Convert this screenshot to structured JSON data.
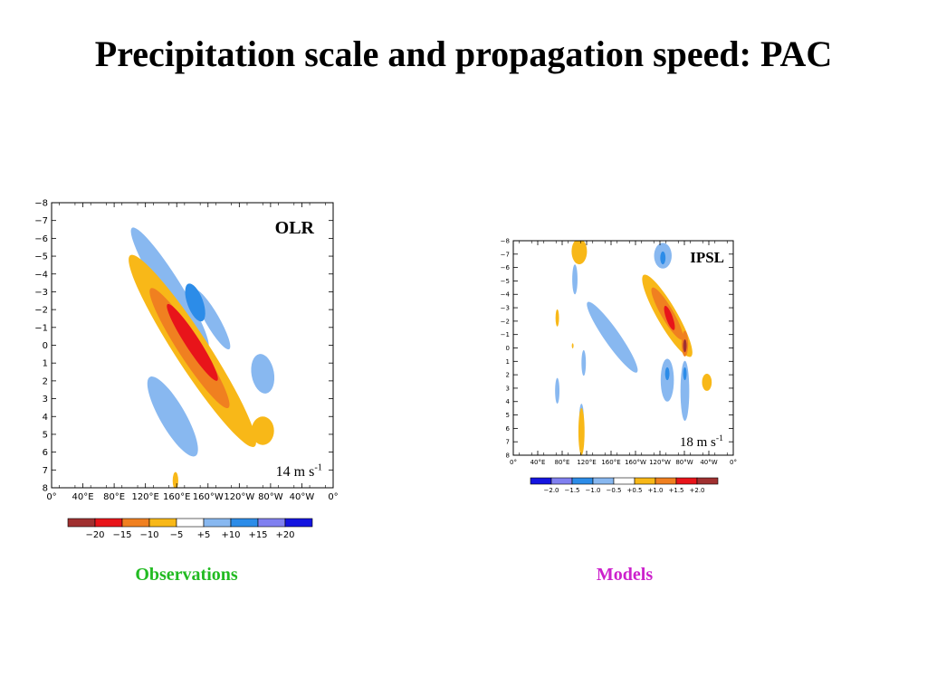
{
  "title": "Precipitation scale and propagation speed: PAC",
  "captions": {
    "observations": "Observations",
    "models": "Models",
    "observations_color": "#22bb22",
    "models_color": "#cc22cc"
  },
  "chart_data": [
    {
      "type": "heatmap",
      "title": "OLR",
      "annotation": "14 m s",
      "annotation_superscript": "-1",
      "y_ticks": [
        "−8",
        "−7",
        "−6",
        "−5",
        "−4",
        "−3",
        "−2",
        "−1",
        "0",
        "1",
        "2",
        "3",
        "4",
        "5",
        "6",
        "7",
        "8"
      ],
      "x_ticks": [
        "0°",
        "40°E",
        "80°E",
        "120°E",
        "160°E",
        "160°W",
        "120°W",
        "80°W",
        "40°W",
        "0°"
      ],
      "colorbar": {
        "colors": [
          "#a03030",
          "#e8141a",
          "#f08020",
          "#f8b818",
          "#ffffff",
          "#88b8f0",
          "#2c8ce8",
          "#8080f0",
          "#1414e0"
        ],
        "labels": [
          "−20",
          "−15",
          "−10",
          "−5",
          "+5",
          "+10",
          "+15",
          "+20"
        ]
      },
      "palette": {
        "pos1": "#f8b818",
        "pos2": "#f08020",
        "pos3": "#e8141a",
        "pos4": "#a03030",
        "neg1": "#88b8f0",
        "neg2": "#2c8ce8"
      }
    },
    {
      "type": "heatmap",
      "title": "IPSL",
      "annotation": "18 m s",
      "annotation_superscript": "-1",
      "y_ticks": [
        "−8",
        "−7",
        "−6",
        "−5",
        "−4",
        "−3",
        "−2",
        "−1",
        "0",
        "1",
        "2",
        "3",
        "4",
        "5",
        "6",
        "7",
        "8"
      ],
      "x_ticks": [
        "0°",
        "40°E",
        "80°E",
        "120°E",
        "160°E",
        "160°W",
        "120°W",
        "80°W",
        "40°W",
        "0°"
      ],
      "colorbar": {
        "colors": [
          "#1414e0",
          "#8080f0",
          "#2c8ce8",
          "#88b8f0",
          "#ffffff",
          "#f8b818",
          "#f08020",
          "#e8141a",
          "#a03030"
        ],
        "labels": [
          "−2.0",
          "−1.5",
          "−1.0",
          "−0.5",
          "+0.5",
          "+1.0",
          "+1.5",
          "+2.0"
        ]
      },
      "palette": {
        "pos1": "#f8b818",
        "pos2": "#f08020",
        "pos3": "#e8141a",
        "pos4": "#a03030",
        "neg1": "#88b8f0",
        "neg2": "#2c8ce8"
      }
    }
  ]
}
